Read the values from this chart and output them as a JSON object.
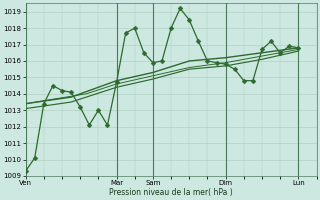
{
  "bg_color": "#cce8e0",
  "grid_color": "#aaccbb",
  "line_color": "#2d6a2d",
  "xlabel": "Pression niveau de la mer( hPa )",
  "ylim": [
    1009,
    1019.5
  ],
  "yticks": [
    1009,
    1010,
    1011,
    1012,
    1013,
    1014,
    1015,
    1016,
    1017,
    1018,
    1019
  ],
  "xtick_labels": [
    "Ven",
    "Mar",
    "Sam",
    "Dim",
    "Lun"
  ],
  "xtick_pos": [
    0,
    60,
    84,
    132,
    180
  ],
  "vline_pos": [
    0,
    60,
    84,
    132,
    180
  ],
  "xlim": [
    0,
    192
  ],
  "series1": {
    "x": [
      0,
      6,
      12,
      18,
      24,
      30,
      36,
      42,
      48,
      54,
      60,
      66,
      72,
      78,
      84,
      90,
      96,
      102,
      108,
      114,
      120,
      126,
      132,
      138,
      144,
      150,
      156,
      162,
      168,
      174,
      180
    ],
    "y": [
      1009.3,
      1010.1,
      1013.4,
      1014.5,
      1014.2,
      1014.1,
      1013.2,
      1012.1,
      1013.0,
      1012.1,
      1014.7,
      1017.7,
      1018.0,
      1016.5,
      1015.9,
      1016.0,
      1018.0,
      1019.2,
      1018.5,
      1017.2,
      1016.0,
      1015.9,
      1015.8,
      1015.5,
      1014.8,
      1014.8,
      1016.7,
      1017.2,
      1016.5,
      1016.9,
      1016.8
    ],
    "markersize": 2.5,
    "linewidth": 0.9
  },
  "series2": {
    "x": [
      0,
      30,
      60,
      84,
      108,
      132,
      156,
      180
    ],
    "y": [
      1013.4,
      1013.8,
      1014.8,
      1015.3,
      1016.0,
      1016.2,
      1016.5,
      1016.8
    ],
    "linewidth": 1.0
  },
  "series3": {
    "x": [
      0,
      30,
      60,
      84,
      108,
      132,
      156,
      180
    ],
    "y": [
      1013.1,
      1013.5,
      1014.4,
      1014.9,
      1015.5,
      1015.7,
      1016.1,
      1016.6
    ],
    "linewidth": 0.85
  },
  "series4": {
    "x": [
      0,
      20,
      40,
      60,
      84,
      108,
      132,
      156,
      180
    ],
    "y": [
      1013.4,
      1013.7,
      1014.0,
      1014.6,
      1015.1,
      1015.6,
      1015.9,
      1016.3,
      1016.7
    ],
    "linewidth": 0.7
  }
}
